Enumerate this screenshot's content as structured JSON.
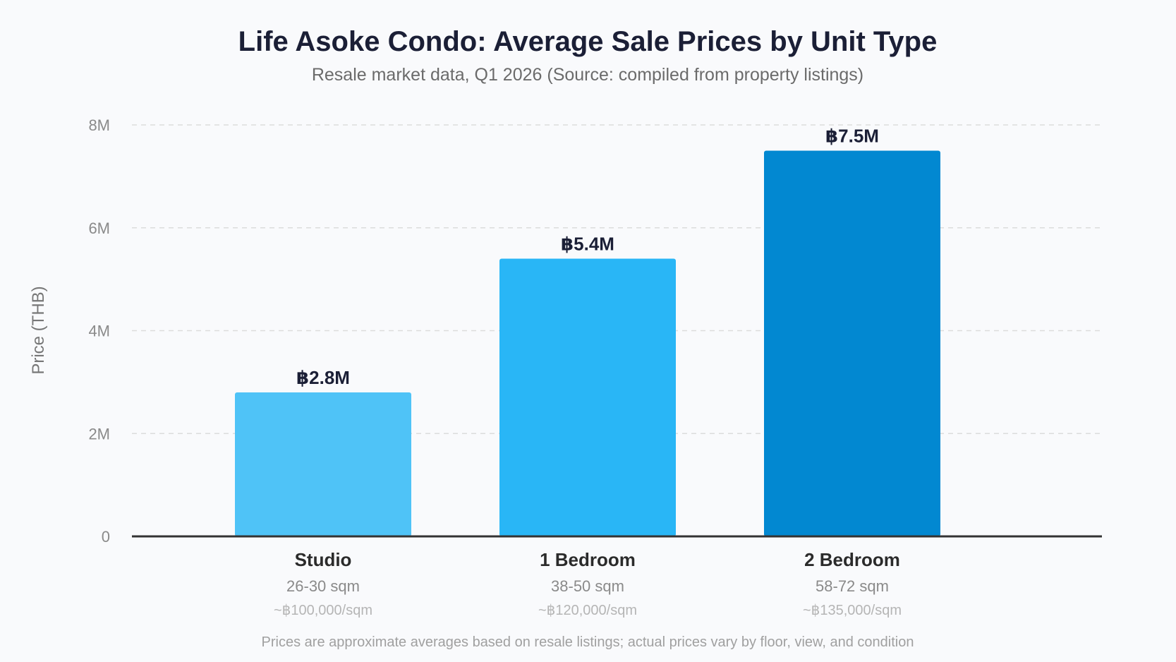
{
  "chart_data": {
    "type": "bar",
    "title": "Life Asoke Condo: Average Sale Prices by Unit Type",
    "subtitle": "Resale market data, Q1 2026 (Source: compiled from property listings)",
    "ylabel": "Price (THB)",
    "xlabel": "",
    "ylim": [
      0,
      8000000
    ],
    "yticks": [
      {
        "value": 0,
        "label": "0"
      },
      {
        "value": 2000000,
        "label": "2M"
      },
      {
        "value": 4000000,
        "label": "4M"
      },
      {
        "value": 6000000,
        "label": "6M"
      },
      {
        "value": 8000000,
        "label": "8M"
      }
    ],
    "grid": true,
    "categories": [
      "Studio",
      "1 Bedroom",
      "2 Bedroom"
    ],
    "category_details": [
      {
        "size": "26-30 sqm",
        "price_per_sqm": "~฿100,000/sqm"
      },
      {
        "size": "38-50 sqm",
        "price_per_sqm": "~฿120,000/sqm"
      },
      {
        "size": "58-72 sqm",
        "price_per_sqm": "~฿135,000/sqm"
      }
    ],
    "values": [
      2800000,
      5400000,
      7500000
    ],
    "data_labels": [
      "฿2.8M",
      "฿5.4M",
      "฿7.5M"
    ],
    "colors": [
      "#4fc3f7",
      "#29b6f6",
      "#0288d1"
    ],
    "footnote": "Prices are approximate averages based on resale listings; actual prices vary by floor, view, and condition"
  }
}
